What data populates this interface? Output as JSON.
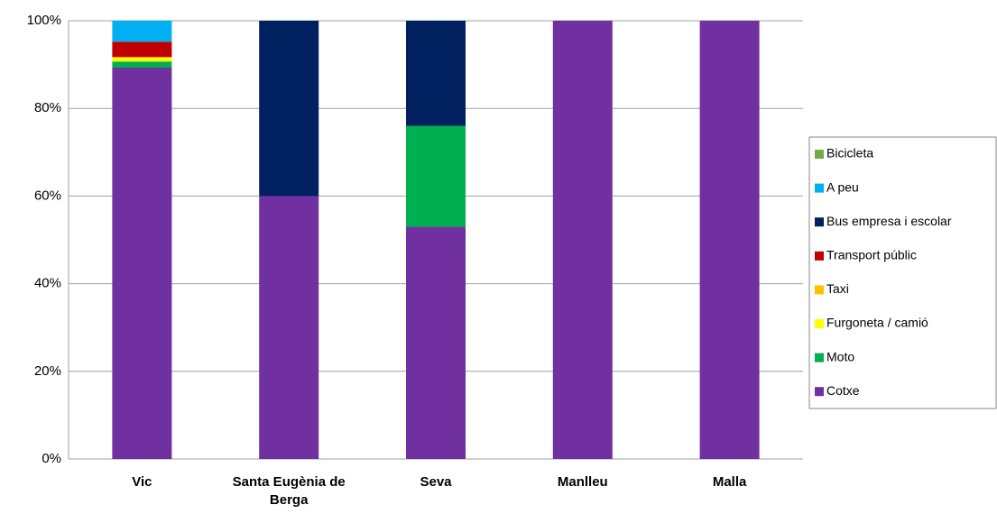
{
  "chart_data": {
    "type": "stacked_bar",
    "categories": [
      "Vic",
      "Santa Eugènia de Berga",
      "Seva",
      "Manlleu",
      "Malla"
    ],
    "series": [
      {
        "name": "Cotxe",
        "color": "#7030a0",
        "values": [
          89.3,
          60,
          53,
          100,
          100
        ]
      },
      {
        "name": "Moto",
        "color": "#00b050",
        "values": [
          1.4,
          0,
          23,
          0,
          0
        ]
      },
      {
        "name": "Furgoneta / camió",
        "color": "#ffff00",
        "values": [
          1.0,
          0,
          0,
          0,
          0
        ]
      },
      {
        "name": "Taxi",
        "color": "#ffc000",
        "values": [
          0,
          0,
          0,
          0,
          0
        ]
      },
      {
        "name": "Transport públic",
        "color": "#c00000",
        "values": [
          3.5,
          0,
          0,
          0,
          0
        ]
      },
      {
        "name": "Bus empresa i escolar",
        "color": "#002060",
        "values": [
          0,
          40,
          24,
          0,
          0
        ]
      },
      {
        "name": "A peu",
        "color": "#00b0f0",
        "values": [
          4.8,
          0,
          0,
          0,
          0
        ]
      },
      {
        "name": "Bicicleta",
        "color": "#70ad47",
        "values": [
          0,
          0,
          0,
          0,
          0
        ]
      }
    ],
    "ylim": [
      0,
      100
    ],
    "yticks": [
      {
        "value": 0,
        "label": "0%"
      },
      {
        "value": 20,
        "label": "20%"
      },
      {
        "value": 40,
        "label": "40%"
      },
      {
        "value": 60,
        "label": "60%"
      },
      {
        "value": 80,
        "label": "80%"
      },
      {
        "value": 100,
        "label": "100%"
      }
    ],
    "grid": true,
    "legend": "right"
  }
}
